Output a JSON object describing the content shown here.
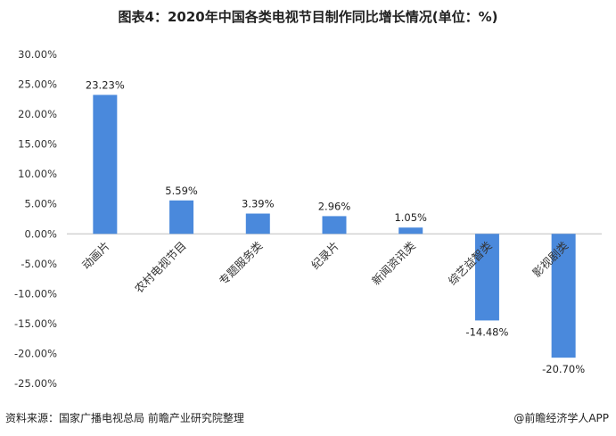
{
  "header": {
    "title": "图表4：2020年中国各类电视节目制作同比增长情况(单位：%)"
  },
  "chart_data": {
    "type": "bar",
    "title": "图表4：2020年中国各类电视节目制作同比增长情况(单位：%)",
    "categories": [
      "动画片",
      "农村电视节目",
      "专题服务类",
      "纪录片",
      "新闻资讯类",
      "综艺益智类",
      "影视剧类"
    ],
    "values": [
      23.23,
      5.59,
      3.39,
      2.96,
      1.05,
      -14.48,
      -20.7
    ],
    "data_labels": [
      "23.23%",
      "5.59%",
      "3.39%",
      "2.96%",
      "1.05%",
      "-14.48%",
      "-20.70%"
    ],
    "ylim": [
      -25,
      30
    ],
    "yticks": [
      30,
      25,
      20,
      15,
      10,
      5,
      0,
      -5,
      -10,
      -15,
      -20,
      -25
    ],
    "ytick_labels": [
      "30.00%",
      "25.00%",
      "20.00%",
      "15.00%",
      "10.00%",
      "5.00%",
      "0.00%",
      "-5.00%",
      "-10.00%",
      "-15.00%",
      "-20.00%",
      "-25.00%"
    ],
    "grid": false,
    "bar_color": "#4a89dc"
  },
  "footer": {
    "source": "资料来源：国家广播电视总局 前瞻产业研究院整理",
    "brand": "@前瞻经济学人APP"
  }
}
